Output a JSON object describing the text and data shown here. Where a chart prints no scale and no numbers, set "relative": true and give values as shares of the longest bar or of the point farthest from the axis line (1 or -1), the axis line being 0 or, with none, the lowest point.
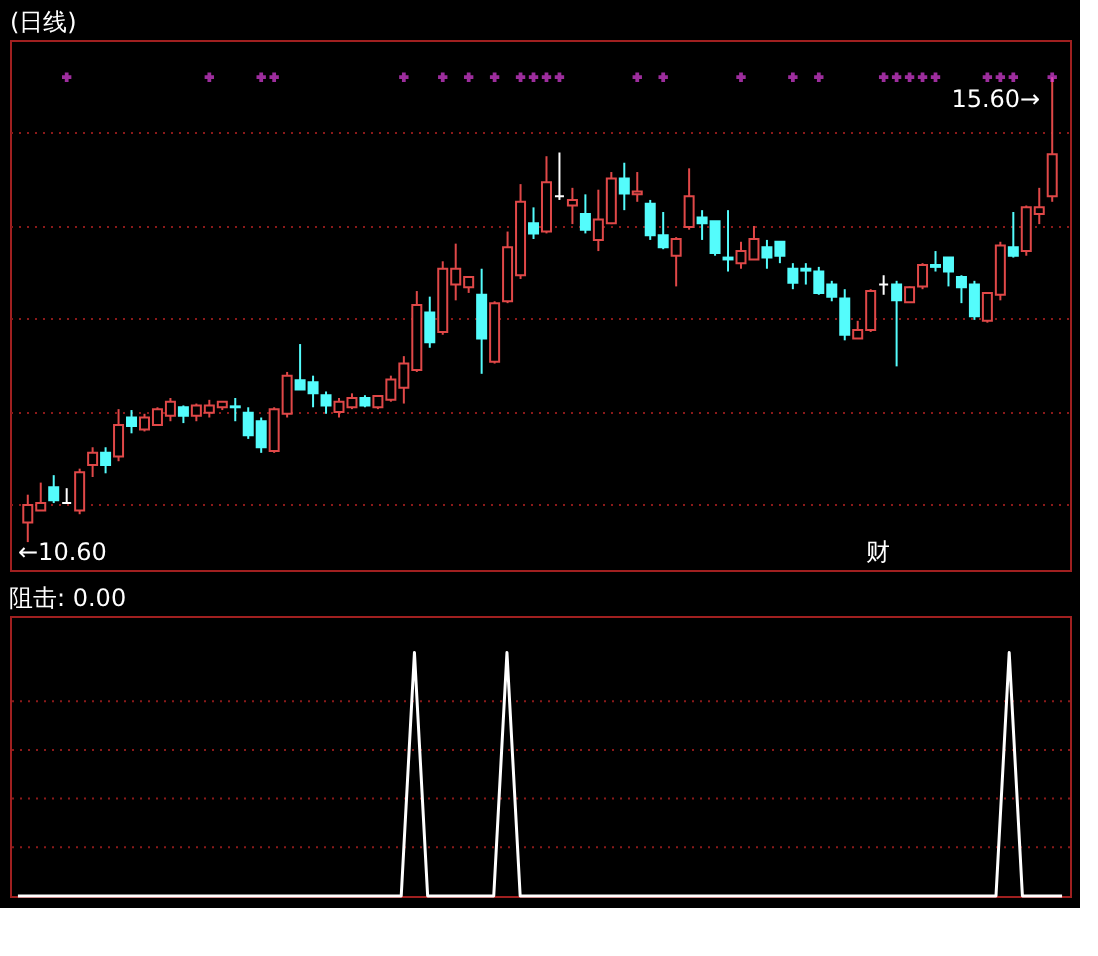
{
  "chart_data": [
    {
      "type": "candlestick",
      "title": "(日线)",
      "tick_labels": false,
      "grid": "y",
      "categories": [
        null,
        null,
        null,
        null,
        null,
        null,
        null,
        null,
        null,
        null,
        null,
        null,
        null,
        null,
        null,
        null,
        null,
        null,
        null,
        null,
        null,
        null,
        null,
        null,
        null,
        null,
        null,
        null,
        null,
        null,
        null,
        null,
        null,
        null,
        null,
        null,
        null,
        null,
        null,
        null,
        null,
        null,
        null,
        null,
        null,
        null,
        null,
        null,
        null,
        null,
        null,
        null,
        null,
        null,
        null,
        null,
        null,
        null,
        null,
        null,
        null,
        null,
        null,
        null,
        null,
        null,
        null,
        null,
        null,
        null,
        null,
        null,
        null,
        null,
        null,
        null,
        null,
        null,
        null,
        null
      ],
      "ylim": [
        10.3,
        16.0
      ],
      "yticks": [
        {
          "value": 11,
          "label": null
        },
        {
          "value": 12,
          "label": null
        },
        {
          "value": 13,
          "label": null
        },
        {
          "value": 14,
          "label": null
        },
        {
          "value": 15,
          "label": null
        }
      ],
      "ohlc": [
        [
          10.81,
          11.11,
          10.6,
          11.0
        ],
        [
          10.94,
          11.24,
          10.94,
          11.02
        ],
        [
          11.19,
          11.32,
          11.02,
          11.05
        ],
        [
          11.02,
          11.18,
          11.02,
          11.02
        ],
        [
          10.94,
          11.39,
          10.9,
          11.35
        ],
        [
          11.43,
          11.62,
          11.3,
          11.56
        ],
        [
          11.56,
          11.62,
          11.34,
          11.43
        ],
        [
          11.52,
          12.03,
          11.47,
          11.86
        ],
        [
          11.94,
          12.02,
          11.77,
          11.85
        ],
        [
          11.81,
          11.98,
          11.79,
          11.94
        ],
        [
          11.86,
          12.05,
          11.85,
          12.03
        ],
        [
          11.96,
          12.15,
          11.9,
          12.11
        ],
        [
          12.05,
          12.07,
          11.88,
          11.96
        ],
        [
          11.96,
          12.09,
          11.9,
          12.07
        ],
        [
          11.99,
          12.13,
          11.94,
          12.07
        ],
        [
          12.05,
          12.11,
          12.02,
          12.11
        ],
        [
          12.06,
          12.15,
          11.9,
          12.05
        ],
        [
          11.99,
          12.05,
          11.71,
          11.75
        ],
        [
          11.9,
          11.94,
          11.56,
          11.62
        ],
        [
          11.58,
          12.05,
          11.56,
          12.03
        ],
        [
          11.98,
          12.43,
          11.94,
          12.39
        ],
        [
          12.34,
          12.73,
          12.24,
          12.24
        ],
        [
          12.32,
          12.39,
          12.05,
          12.2
        ],
        [
          12.18,
          12.22,
          11.98,
          12.07
        ],
        [
          12.0,
          12.15,
          11.94,
          12.11
        ],
        [
          12.05,
          12.2,
          12.03,
          12.15
        ],
        [
          12.15,
          12.18,
          12.05,
          12.07
        ],
        [
          12.05,
          12.18,
          12.03,
          12.17
        ],
        [
          12.13,
          12.39,
          12.11,
          12.35
        ],
        [
          12.26,
          12.6,
          12.09,
          12.52
        ],
        [
          12.45,
          13.3,
          12.43,
          13.15
        ],
        [
          13.07,
          13.24,
          12.69,
          12.75
        ],
        [
          12.86,
          13.62,
          12.83,
          13.54
        ],
        [
          13.37,
          13.81,
          13.2,
          13.54
        ],
        [
          13.34,
          13.45,
          13.28,
          13.45
        ],
        [
          13.26,
          13.54,
          12.41,
          12.79
        ],
        [
          12.54,
          13.19,
          12.52,
          13.17
        ],
        [
          13.19,
          13.94,
          13.17,
          13.77
        ],
        [
          13.47,
          14.45,
          13.43,
          14.26
        ],
        [
          14.03,
          14.2,
          13.86,
          13.92
        ],
        [
          13.94,
          14.75,
          13.92,
          14.47
        ],
        [
          14.32,
          14.79,
          14.28,
          14.32
        ],
        [
          14.22,
          14.41,
          14.02,
          14.28
        ],
        [
          14.13,
          14.34,
          13.92,
          13.96
        ],
        [
          13.85,
          14.39,
          13.73,
          14.07
        ],
        [
          14.03,
          14.58,
          14.02,
          14.51
        ],
        [
          14.51,
          14.68,
          14.17,
          14.35
        ],
        [
          14.34,
          14.58,
          14.26,
          14.37
        ],
        [
          14.24,
          14.28,
          13.85,
          13.9
        ],
        [
          13.9,
          14.15,
          13.75,
          13.77
        ],
        [
          13.68,
          13.88,
          13.35,
          13.86
        ],
        [
          13.99,
          14.62,
          13.96,
          14.32
        ],
        [
          14.09,
          14.17,
          13.85,
          14.03
        ],
        [
          14.05,
          14.05,
          13.68,
          13.71
        ],
        [
          13.66,
          14.17,
          13.51,
          13.64
        ],
        [
          13.6,
          13.83,
          13.54,
          13.73
        ],
        [
          13.64,
          14.0,
          13.64,
          13.86
        ],
        [
          13.77,
          13.85,
          13.54,
          13.66
        ],
        [
          13.83,
          13.83,
          13.6,
          13.68
        ],
        [
          13.54,
          13.6,
          13.32,
          13.39
        ],
        [
          13.54,
          13.6,
          13.37,
          13.52
        ],
        [
          13.51,
          13.56,
          13.26,
          13.28
        ],
        [
          13.37,
          13.41,
          13.19,
          13.24
        ],
        [
          13.22,
          13.32,
          12.77,
          12.83
        ],
        [
          12.79,
          12.98,
          12.79,
          12.88
        ],
        [
          12.88,
          13.32,
          12.86,
          13.3
        ],
        [
          13.37,
          13.47,
          13.26,
          13.37
        ],
        [
          13.37,
          13.41,
          12.49,
          13.2
        ],
        [
          13.18,
          13.35,
          13.18,
          13.34
        ],
        [
          13.35,
          13.6,
          13.32,
          13.58
        ],
        [
          13.58,
          13.73,
          13.51,
          13.56
        ],
        [
          13.66,
          13.66,
          13.35,
          13.51
        ],
        [
          13.45,
          13.47,
          13.17,
          13.34
        ],
        [
          13.37,
          13.41,
          12.99,
          13.03
        ],
        [
          12.98,
          13.28,
          12.96,
          13.28
        ],
        [
          13.26,
          13.83,
          13.2,
          13.79
        ],
        [
          13.77,
          14.15,
          13.66,
          13.68
        ],
        [
          13.73,
          14.22,
          13.68,
          14.2
        ],
        [
          14.13,
          14.41,
          14.02,
          14.2
        ],
        [
          14.32,
          15.6,
          14.26,
          14.77
        ]
      ],
      "colors": [
        "#e04848",
        "#e04848",
        "#54fcfc",
        "#ffffff",
        "#e04848",
        "#e04848",
        "#54fcfc",
        "#e04848",
        "#54fcfc",
        "#e04848",
        "#e04848",
        "#e04848",
        "#54fcfc",
        "#e04848",
        "#e04848",
        "#e04848",
        "#54fcfc",
        "#54fcfc",
        "#54fcfc",
        "#e04848",
        "#e04848",
        "#54fcfc",
        "#54fcfc",
        "#54fcfc",
        "#e04848",
        "#e04848",
        "#54fcfc",
        "#e04848",
        "#e04848",
        "#e04848",
        "#e04848",
        "#54fcfc",
        "#e04848",
        "#e04848",
        "#e04848",
        "#54fcfc",
        "#e04848",
        "#e04848",
        "#e04848",
        "#54fcfc",
        "#e04848",
        "#ffffff",
        "#e04848",
        "#54fcfc",
        "#e04848",
        "#e04848",
        "#54fcfc",
        "#e04848",
        "#54fcfc",
        "#54fcfc",
        "#e04848",
        "#e04848",
        "#54fcfc",
        "#54fcfc",
        "#54fcfc",
        "#e04848",
        "#e04848",
        "#54fcfc",
        "#54fcfc",
        "#54fcfc",
        "#54fcfc",
        "#54fcfc",
        "#54fcfc",
        "#54fcfc",
        "#e04848",
        "#e04848",
        "#ffffff",
        "#54fcfc",
        "#e04848",
        "#e04848",
        "#54fcfc",
        "#54fcfc",
        "#54fcfc",
        "#54fcfc",
        "#e04848",
        "#e04848",
        "#54fcfc",
        "#e04848",
        "#e04848",
        "#e04848"
      ],
      "series": [
        {
          "type": "scatter",
          "marker": "cross",
          "color": "#e040e0",
          "values": [
            null,
            null,
            null,
            15.6,
            null,
            null,
            null,
            null,
            null,
            null,
            null,
            null,
            null,
            null,
            15.6,
            null,
            null,
            null,
            15.6,
            15.6,
            null,
            null,
            null,
            null,
            null,
            null,
            null,
            null,
            null,
            15.6,
            null,
            null,
            15.6,
            null,
            15.6,
            null,
            15.6,
            null,
            15.6,
            15.6,
            15.6,
            15.6,
            null,
            null,
            null,
            null,
            null,
            15.6,
            null,
            15.6,
            null,
            null,
            null,
            null,
            null,
            15.6,
            null,
            null,
            null,
            15.6,
            null,
            15.6,
            null,
            null,
            null,
            null,
            15.6,
            15.6,
            15.6,
            15.6,
            15.6,
            null,
            null,
            null,
            15.6,
            15.6,
            15.6,
            null,
            null,
            15.6
          ]
        }
      ],
      "annotations": [
        "←10.60",
        {
          "text": "15.60→",
          "y": 15.6
        },
        "财"
      ]
    },
    {
      "type": "line",
      "title": "阻击: 0.00",
      "relative": true,
      "tick_labels": false,
      "ref_lines": [
        {
          "axis": "y",
          "value": 0.2,
          "color": "#8b1a1a",
          "line_style": "dotted"
        },
        {
          "axis": "y",
          "value": 0.4,
          "color": "#8b1a1a",
          "line_style": "dotted"
        },
        {
          "axis": "y",
          "value": 0.6,
          "color": "#8b1a1a",
          "line_style": "dotted"
        },
        {
          "axis": "y",
          "value": 0.8,
          "color": "#8b1a1a",
          "line_style": "dotted"
        }
      ],
      "categories": [
        null,
        null,
        null,
        null,
        null,
        null,
        null,
        null,
        null,
        null,
        null,
        null,
        null,
        null,
        null,
        null,
        null,
        null,
        null,
        null,
        null,
        null,
        null,
        null,
        null,
        null,
        null,
        null,
        null,
        null,
        null,
        null,
        null,
        null,
        null,
        null,
        null,
        null,
        null,
        null,
        null,
        null,
        null,
        null,
        null,
        null,
        null,
        null,
        null,
        null,
        null,
        null,
        null,
        null,
        null,
        null,
        null,
        null,
        null,
        null,
        null,
        null,
        null,
        null,
        null,
        null,
        null,
        null,
        null,
        null,
        null,
        null,
        null,
        null,
        null,
        null,
        null,
        null,
        null,
        null
      ],
      "series": [
        {
          "color": "#ffffff",
          "values": [
            0,
            0,
            0,
            0,
            0,
            0,
            0,
            0,
            0,
            0,
            0,
            0,
            0,
            0,
            0,
            0,
            0,
            0,
            0,
            0,
            0,
            0,
            0,
            0,
            0,
            0,
            0,
            0,
            0,
            0,
            1,
            0,
            0,
            0,
            0,
            0,
            0,
            1,
            0,
            0,
            0,
            0,
            0,
            0,
            0,
            0,
            0,
            0,
            0,
            0,
            0,
            0,
            0,
            0,
            0,
            0,
            0,
            0,
            0,
            0,
            0,
            0,
            0,
            0,
            0,
            0,
            0,
            0,
            0,
            0,
            0,
            0,
            0,
            0,
            0,
            1,
            0,
            0,
            0,
            0
          ]
        }
      ]
    }
  ]
}
